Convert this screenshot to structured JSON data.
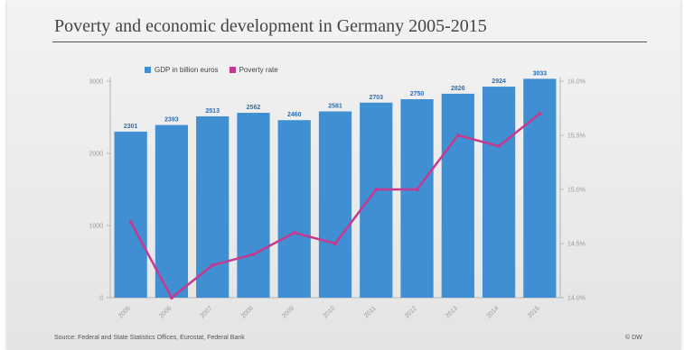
{
  "header": {
    "title": "Poverty and economic development in Germany 2005-2015"
  },
  "footer": {
    "source": "Source: Federal and State Statistics Offices, Eurostat, Federal Bank",
    "credit": "© DW"
  },
  "colors": {
    "bar": "#3f8fd2",
    "line": "#c53a8e",
    "axis": "#b5b5b5"
  },
  "chart_data": {
    "type": "bar",
    "title": "Poverty and economic development in Germany 2005-2015",
    "categories": [
      "2005",
      "2006",
      "2007",
      "2008",
      "2009",
      "2010",
      "2011",
      "2012",
      "2013",
      "2014",
      "2015"
    ],
    "series": [
      {
        "name": "GDP in billion euros",
        "type": "bar",
        "axis": "left",
        "values": [
          2301,
          2393,
          2513,
          2562,
          2460,
          2581,
          2703,
          2750,
          2826,
          2924,
          3033
        ]
      },
      {
        "name": "Poverty rate",
        "type": "line",
        "axis": "right",
        "values": [
          14.7,
          14.0,
          14.3,
          14.4,
          14.6,
          14.5,
          15.0,
          15.0,
          15.5,
          15.4,
          15.7
        ]
      }
    ],
    "y_left": {
      "ylim": [
        0,
        3000
      ],
      "ticks": [
        0,
        1000,
        2000,
        3000
      ],
      "tick_labels": [
        "0",
        "1000",
        "2000",
        "3000"
      ]
    },
    "y_right": {
      "ylim": [
        14.0,
        16.0
      ],
      "ticks": [
        14.0,
        14.5,
        15.0,
        15.5,
        16.0
      ],
      "tick_labels": [
        "14.0%",
        "14.5%",
        "15.0%",
        "15.5%",
        "16.0%"
      ]
    },
    "legend": {
      "placement": "top-left",
      "items": [
        "GDP in billion euros",
        "Poverty rate"
      ]
    },
    "grid": false
  }
}
